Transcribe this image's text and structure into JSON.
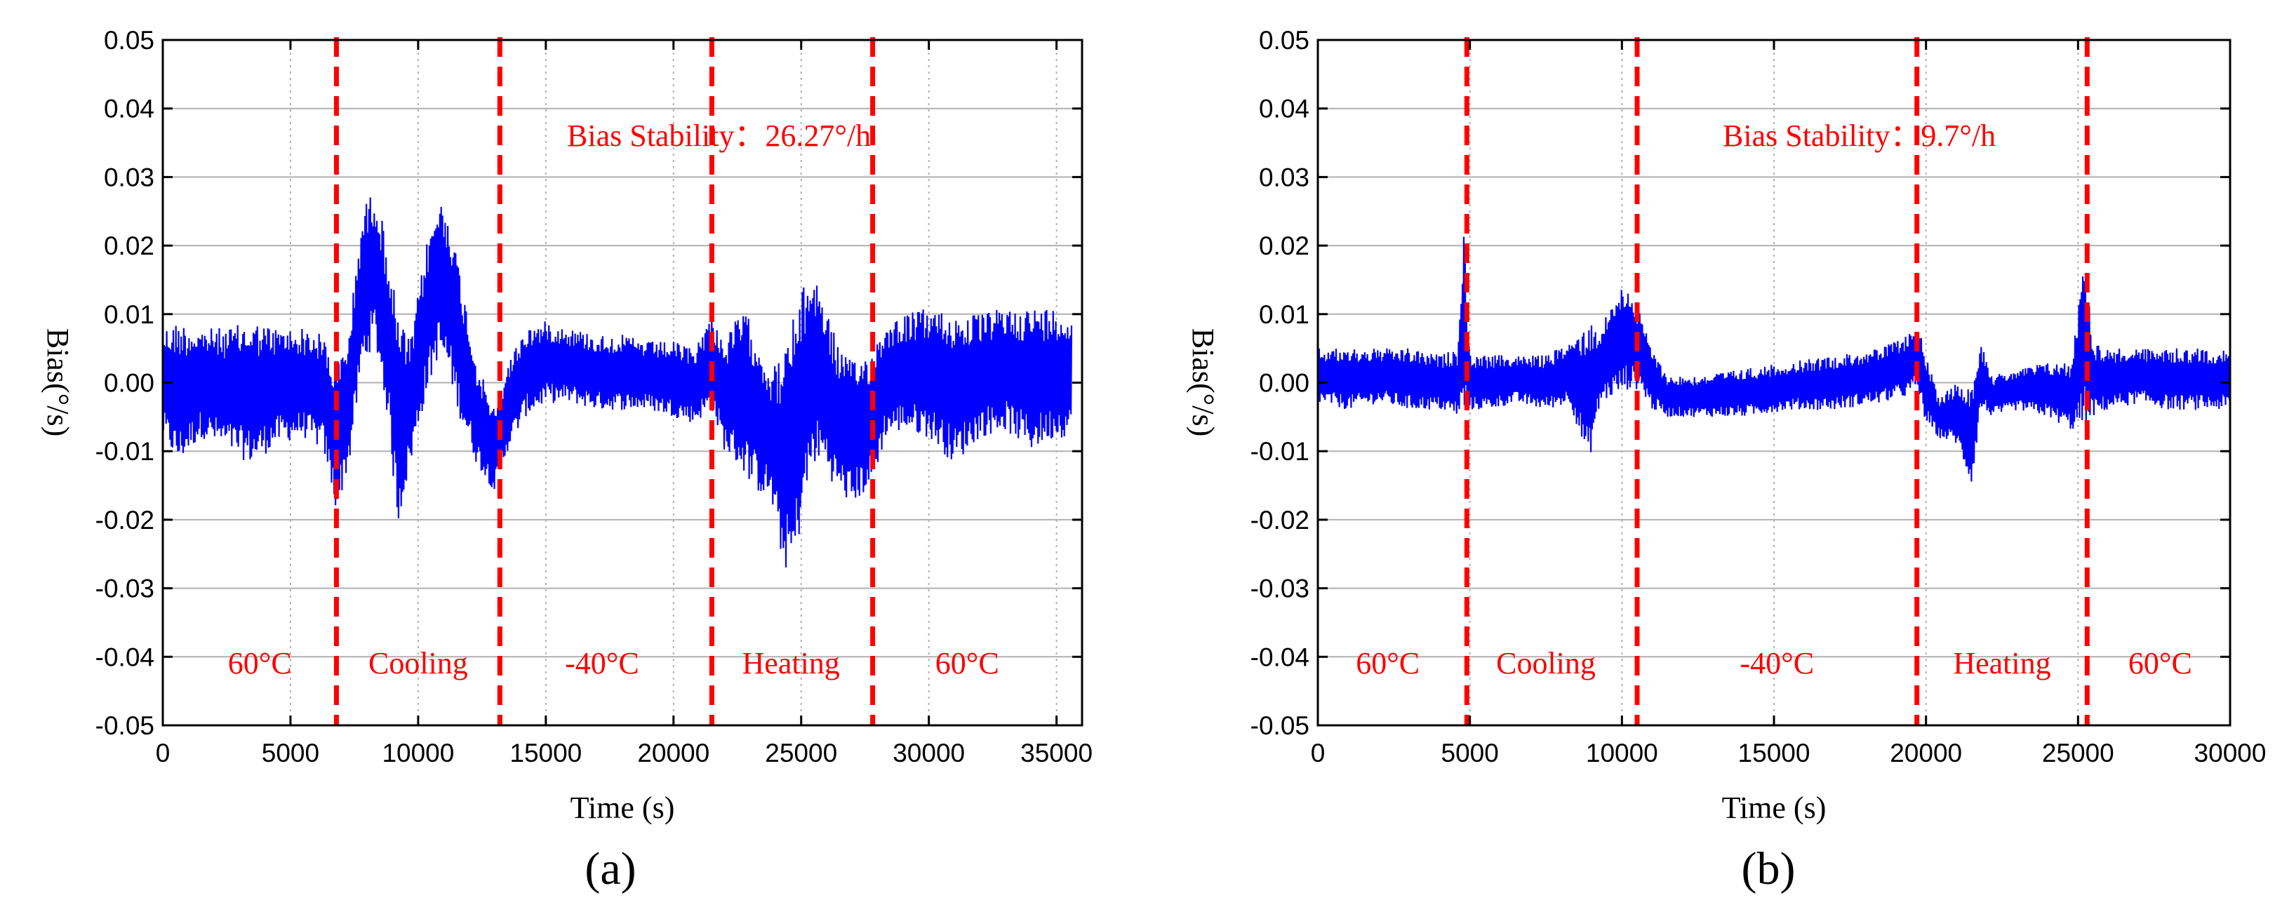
{
  "colors": {
    "signal": "#0000ff",
    "marker": "#ff0000",
    "grid": "#b0b0b0"
  },
  "chart_data": [
    {
      "type": "line",
      "panel_label": "(a)",
      "xlabel": "Time (s)",
      "ylabel": "Bias(°/s)",
      "xlim": [
        0,
        36000
      ],
      "ylim": [
        -0.05,
        0.05
      ],
      "xticks": [
        0,
        5000,
        10000,
        15000,
        20000,
        25000,
        30000,
        35000
      ],
      "yticks": [
        -0.05,
        -0.04,
        -0.03,
        -0.02,
        -0.01,
        0.0,
        0.01,
        0.02,
        0.03,
        0.04,
        0.05
      ],
      "ytick_labels": [
        "-0.05",
        "-0.04",
        "-0.03",
        "-0.02",
        "-0.01",
        "0.00",
        "0.01",
        "0.02",
        "0.03",
        "0.04",
        "0.05"
      ],
      "annotation": "Bias Stability：26.27°/h",
      "phase_boundaries": [
        6800,
        13200,
        21500,
        27800
      ],
      "phase_labels": [
        {
          "text": "60°C",
          "x": 3800
        },
        {
          "text": "Cooling",
          "x": 10000
        },
        {
          "text": "-40°C",
          "x": 17200
        },
        {
          "text": "Heating",
          "x": 24600
        },
        {
          "text": "60°C",
          "x": 31500
        }
      ],
      "series": [
        {
          "name": "Bias",
          "x": [
            0,
            600,
            1500,
            2500,
            3500,
            4500,
            5500,
            6300,
            6800,
            7300,
            7800,
            8300,
            8800,
            9200,
            9700,
            10300,
            10800,
            11200,
            11700,
            12300,
            13000,
            13500,
            14200,
            15000,
            16000,
            17000,
            18000,
            19000,
            20000,
            20800,
            21500,
            22000,
            22700,
            23300,
            23800,
            24300,
            24700,
            25100,
            25500,
            25900,
            26400,
            27000,
            27800,
            28300,
            29000,
            30000,
            31000,
            32000,
            33000,
            34000,
            35000,
            35600
          ],
          "upper": [
            0.008,
            0.009,
            0.008,
            0.008,
            0.009,
            0.008,
            0.008,
            0.007,
            0.002,
            0.008,
            0.025,
            0.029,
            0.02,
            0.01,
            0.006,
            0.02,
            0.027,
            0.025,
            0.015,
            0.003,
            -0.004,
            0.003,
            0.008,
            0.009,
            0.008,
            0.007,
            0.007,
            0.006,
            0.006,
            0.005,
            0.01,
            0.006,
            0.011,
            0.007,
            0.002,
            0.004,
            0.01,
            0.014,
            0.017,
            0.012,
            0.006,
            0.003,
            0.005,
            0.009,
            0.01,
            0.011,
            0.01,
            0.01,
            0.011,
            0.011,
            0.011,
            0.01
          ],
          "lower": [
            -0.008,
            -0.012,
            -0.008,
            -0.01,
            -0.012,
            -0.009,
            -0.008,
            -0.01,
            -0.019,
            -0.012,
            0.002,
            0.006,
            -0.005,
            -0.021,
            -0.012,
            -0.002,
            0.004,
            0.001,
            -0.006,
            -0.012,
            -0.016,
            -0.01,
            -0.005,
            -0.003,
            -0.003,
            -0.004,
            -0.004,
            -0.004,
            -0.005,
            -0.006,
            -0.004,
            -0.01,
            -0.013,
            -0.016,
            -0.017,
            -0.027,
            -0.028,
            -0.018,
            -0.012,
            -0.012,
            -0.016,
            -0.018,
            -0.015,
            -0.008,
            -0.007,
            -0.008,
            -0.012,
            -0.008,
            -0.007,
            -0.01,
            -0.008,
            -0.008
          ]
        }
      ]
    },
    {
      "type": "line",
      "panel_label": "(b)",
      "xlabel": "Time (s)",
      "ylabel": "Bias(°/s)",
      "xlim": [
        0,
        30000
      ],
      "ylim": [
        -0.05,
        0.05
      ],
      "xticks": [
        0,
        5000,
        10000,
        15000,
        20000,
        25000,
        30000
      ],
      "yticks": [
        -0.05,
        -0.04,
        -0.03,
        -0.02,
        -0.01,
        0.0,
        0.01,
        0.02,
        0.03,
        0.04,
        0.05
      ],
      "ytick_labels": [
        "-0.05",
        "-0.04",
        "-0.03",
        "-0.02",
        "-0.01",
        "0.00",
        "0.01",
        "0.02",
        "0.03",
        "0.04",
        "0.05"
      ],
      "annotation": "Bias Stability：9.7°/h",
      "phase_boundaries": [
        4900,
        10500,
        19700,
        25300
      ],
      "phase_labels": [
        {
          "text": "60°C",
          "x": 2300
        },
        {
          "text": "Cooling",
          "x": 7500
        },
        {
          "text": "-40°C",
          "x": 15100
        },
        {
          "text": "Heating",
          "x": 22500
        },
        {
          "text": "60°C",
          "x": 27700
        }
      ],
      "series": [
        {
          "name": "Bias",
          "x": [
            0,
            1000,
            2000,
            3000,
            4000,
            4600,
            4800,
            5000,
            5600,
            6500,
            7500,
            8300,
            8900,
            9300,
            9800,
            10200,
            10600,
            11000,
            11500,
            12500,
            14000,
            15500,
            17000,
            18500,
            19400,
            19700,
            20000,
            20400,
            21000,
            21500,
            21800,
            22200,
            23000,
            24000,
            24800,
            25200,
            25500,
            26000,
            27000,
            28000,
            29000,
            30000
          ],
          "upper": [
            0.005,
            0.005,
            0.005,
            0.005,
            0.004,
            0.005,
            0.022,
            0.004,
            0.004,
            0.004,
            0.004,
            0.006,
            0.009,
            0.008,
            0.013,
            0.015,
            0.01,
            0.005,
            0.001,
            0.001,
            0.002,
            0.003,
            0.004,
            0.005,
            0.007,
            0.009,
            0.004,
            -0.002,
            0.0,
            0.0,
            0.006,
            0.001,
            0.002,
            0.003,
            0.003,
            0.02,
            0.006,
            0.005,
            0.005,
            0.005,
            0.005,
            0.005
          ],
          "lower": [
            -0.003,
            -0.004,
            -0.003,
            -0.004,
            -0.004,
            -0.005,
            -0.005,
            -0.004,
            -0.004,
            -0.003,
            -0.004,
            -0.003,
            -0.012,
            -0.003,
            -0.002,
            -0.001,
            -0.001,
            -0.004,
            -0.005,
            -0.005,
            -0.005,
            -0.004,
            -0.004,
            -0.003,
            -0.002,
            -0.001,
            -0.006,
            -0.008,
            -0.009,
            -0.015,
            -0.004,
            -0.005,
            -0.004,
            -0.005,
            -0.007,
            -0.007,
            -0.005,
            -0.004,
            -0.003,
            -0.004,
            -0.004,
            -0.004
          ]
        }
      ]
    }
  ]
}
